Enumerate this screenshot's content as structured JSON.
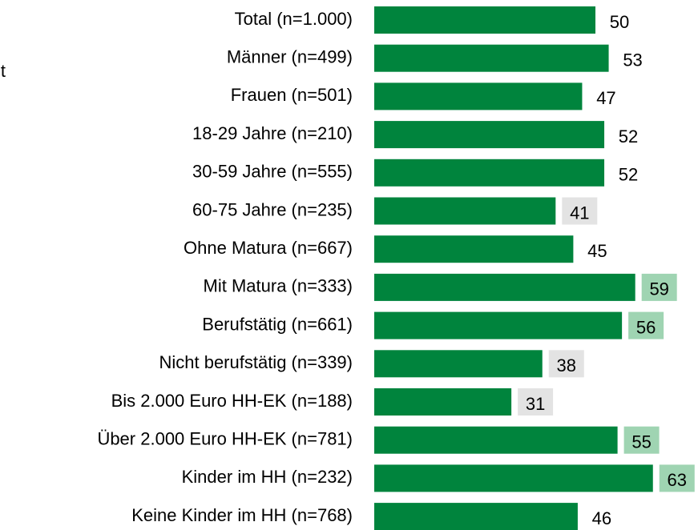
{
  "chart_data": {
    "type": "barh",
    "annotation": "t",
    "categories": [
      "Total (n=1.000)",
      "Männer (n=499)",
      "Frauen (n=501)",
      "18-29 Jahre (n=210)",
      "30-59 Jahre (n=555)",
      "60-75 Jahre (n=235)",
      "Ohne Matura (n=667)",
      "Mit Matura (n=333)",
      "Berufstätig (n=661)",
      "Nicht berufstätig (n=339)",
      "Bis 2.000 Euro HH-EK (n=188)",
      "Über 2.000 Euro HH-EK (n=781)",
      "Kinder im HH (n=232)",
      "Keine Kinder im HH (n=768)"
    ],
    "values": [
      50,
      53,
      47,
      52,
      52,
      41,
      45,
      59,
      56,
      38,
      31,
      55,
      63,
      46
    ],
    "color": "#00843d",
    "label_colors": [
      null,
      null,
      null,
      null,
      null,
      "#e3e3e3",
      null,
      "#9fd4b2",
      "#9fd4b2",
      "#e3e3e3",
      "#e3e3e3",
      "#9fd4b2",
      "#9fd4b2",
      null
    ],
    "xlim": [
      0,
      70
    ]
  }
}
